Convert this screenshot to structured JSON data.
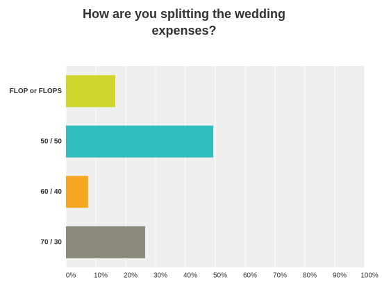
{
  "chart_data": {
    "type": "hbar",
    "title": "How are you splitting the wedding expenses?",
    "categories": [
      "FLOP or FLOPS",
      "50 / 50",
      "60 / 40",
      "70 / 30"
    ],
    "values": [
      16.5,
      49.3,
      7.4,
      26.5
    ],
    "colors": [
      "#cfd62c",
      "#33bebe",
      "#f7a823",
      "#8a897a"
    ],
    "xlim": [
      0,
      100
    ],
    "xticks": [
      {
        "value": 0,
        "label": "0%"
      },
      {
        "value": 10,
        "label": "10%"
      },
      {
        "value": 20,
        "label": "20%"
      },
      {
        "value": 30,
        "label": "30%"
      },
      {
        "value": 40,
        "label": "40%"
      },
      {
        "value": 50,
        "label": "50%"
      },
      {
        "value": 60,
        "label": "60%"
      },
      {
        "value": 70,
        "label": "70%"
      },
      {
        "value": 80,
        "label": "80%"
      },
      {
        "value": 90,
        "label": "90%"
      },
      {
        "value": 100,
        "label": "100%"
      }
    ],
    "grid": true
  }
}
